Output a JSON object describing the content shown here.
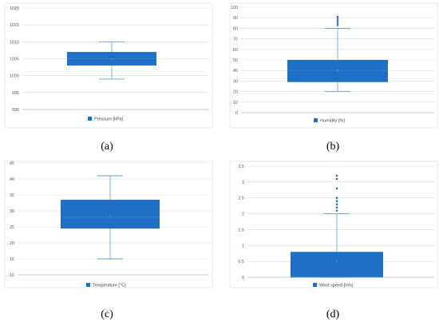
{
  "panels": [
    {
      "caption": "(a)",
      "chart_data": {
        "type": "box",
        "legend": "Pressure [kPa]",
        "ylim": [
          990,
          1020
        ],
        "yticks": [
          990,
          995,
          1000,
          1005,
          1010,
          1015,
          1020
        ],
        "box": {
          "min": 999,
          "q1": 1003,
          "median": 1005,
          "q3": 1007,
          "max": 1010,
          "mean": 1005
        },
        "outliers": []
      }
    },
    {
      "caption": "(b)",
      "chart_data": {
        "type": "box",
        "legend": "Humidity [%]",
        "ylim": [
          0,
          100
        ],
        "yticks": [
          0,
          10,
          20,
          30,
          40,
          50,
          60,
          70,
          80,
          90,
          100
        ],
        "box": {
          "min": 20,
          "q1": 29,
          "median": 40,
          "q3": 50,
          "max": 80,
          "mean": 40
        },
        "outliers": [
          83,
          85,
          87,
          89,
          91
        ]
      }
    },
    {
      "caption": "(c)",
      "chart_data": {
        "type": "box",
        "legend": "Temperature [°C]",
        "ylim": [
          10,
          45
        ],
        "yticks": [
          10,
          15,
          20,
          25,
          30,
          35,
          40,
          45
        ],
        "box": {
          "min": 15,
          "q1": 24.5,
          "median": 28,
          "q3": 33.5,
          "max": 41,
          "mean": 28.5
        },
        "outliers": []
      }
    },
    {
      "caption": "(d)",
      "chart_data": {
        "type": "box",
        "legend": "Wind speed [m/s]",
        "ylim": [
          0,
          3.5
        ],
        "yticks": [
          0,
          0.5,
          1,
          1.5,
          2,
          2.5,
          3,
          3.5
        ],
        "box": {
          "min": 0,
          "q1": 0,
          "median": 0,
          "q3": 0.8,
          "max": 2,
          "mean": 0.5
        },
        "outliers": [
          2.1,
          2.2,
          2.3,
          2.4,
          2.5,
          2.8,
          3.1,
          3.2
        ]
      }
    }
  ],
  "colors": {
    "box": "#1f6fc5",
    "whisker": "#5b9bd5",
    "grid": "#d9d9d9",
    "axis": "#bfbfbf"
  }
}
